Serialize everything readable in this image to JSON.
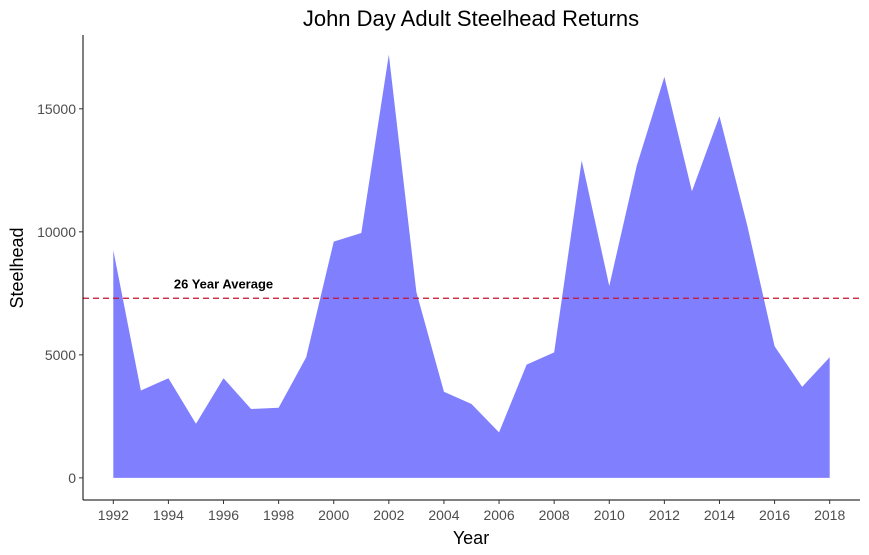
{
  "chart_data": {
    "type": "area",
    "title": "John Day Adult Steelhead Returns",
    "xlabel": "Year",
    "ylabel": "Steelhead",
    "x": [
      1992,
      1993,
      1994,
      1995,
      1996,
      1997,
      1998,
      1999,
      2000,
      2001,
      2002,
      2003,
      2004,
      2005,
      2006,
      2007,
      2008,
      2009,
      2010,
      2011,
      2012,
      2013,
      2014,
      2015,
      2016,
      2017,
      2018
    ],
    "y": [
      9250,
      3550,
      4050,
      2200,
      4050,
      2800,
      2850,
      4900,
      9600,
      9950,
      17200,
      7550,
      3500,
      3000,
      1850,
      4600,
      5100,
      12900,
      7800,
      12700,
      16300,
      11650,
      14700,
      10300,
      5350,
      3700,
      4900
    ],
    "xticks": [
      "1992",
      "1994",
      "1996",
      "1998",
      "2000",
      "2002",
      "2004",
      "2006",
      "2008",
      "2010",
      "2012",
      "2014",
      "2016",
      "2018"
    ],
    "yticks": [
      "0",
      "5000",
      "10000",
      "15000"
    ],
    "xlim": [
      1990.9,
      2019.1
    ],
    "ylim": [
      -900,
      18000
    ],
    "fill_color": "#8080ff",
    "reference_line": {
      "y": 7300,
      "color": "#c8102e",
      "style": "dashed",
      "label": "26 Year Average",
      "label_x": 1996
    },
    "grid": false,
    "legend": "none"
  }
}
